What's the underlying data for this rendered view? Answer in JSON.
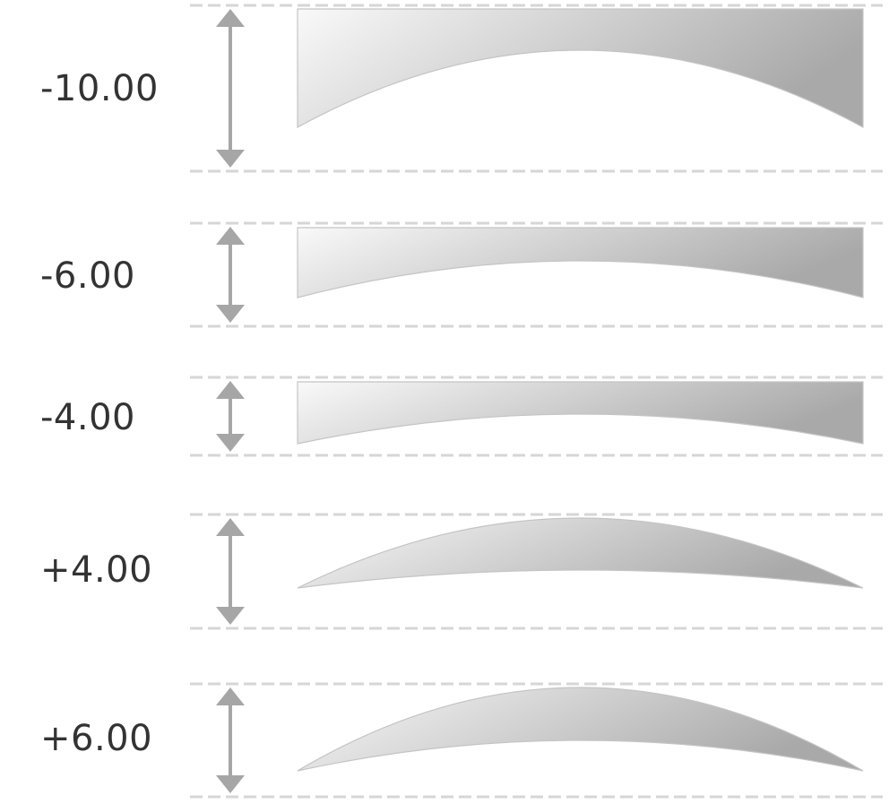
{
  "lenses": [
    {
      "power": "-10.00",
      "type": "concave"
    },
    {
      "power": "-6.00",
      "type": "concave"
    },
    {
      "power": "-4.00",
      "type": "concave"
    },
    {
      "power": "+4.00",
      "type": "convex"
    },
    {
      "power": "+6.00",
      "type": "convex"
    }
  ],
  "colors": {
    "guide": "#d6d6d6",
    "arrow": "#a6a6a6",
    "lens_light": "#f9f9f9",
    "lens_dark": "#a9a9a9",
    "lens_edge": "#c4c4c4",
    "text": "#333333"
  }
}
